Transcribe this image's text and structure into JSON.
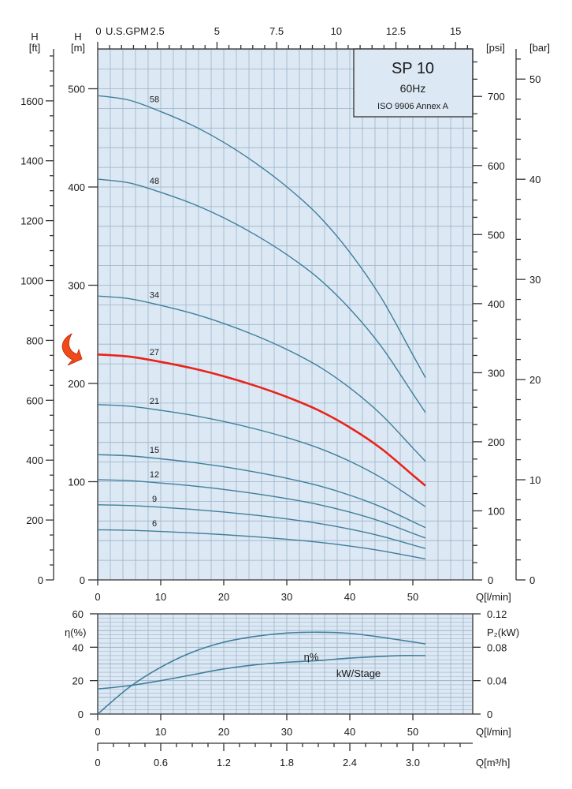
{
  "chart_data": [
    {
      "type": "line",
      "title": "SP 10",
      "frequency": "60Hz",
      "standard": "ISO 9906 Annex A",
      "xlabel": "Q[l/min]",
      "xlim": [
        0,
        59.5
      ],
      "x_ticks": [
        0,
        10,
        20,
        30,
        40,
        50
      ],
      "top_axis": {
        "label": "U.S.GPM",
        "ticks": [
          "0",
          "2.5",
          "5",
          "7.5",
          "10",
          "12.5",
          "15"
        ]
      },
      "ylabel_m": "H",
      "ylabel_m_unit": "[m]",
      "ylim_m": [
        0,
        541
      ],
      "y_ticks_m": [
        0,
        100,
        200,
        300,
        400,
        500
      ],
      "ylabel_ft": "H",
      "ylabel_ft_unit": "[ft]",
      "y_ticks_ft": [
        0,
        200,
        400,
        600,
        800,
        1000,
        1200,
        1400,
        1600
      ],
      "ylabel_psi": "[psi]",
      "y_ticks_psi": [
        0,
        100,
        200,
        300,
        400,
        500,
        600,
        700
      ],
      "ylabel_bar": "[bar]",
      "y_ticks_bar": [
        0,
        10,
        20,
        30,
        40,
        50
      ],
      "q": [
        0,
        5,
        10,
        15,
        20,
        25,
        30,
        35,
        40,
        45,
        50,
        52
      ],
      "head_per_stage_m": [
        8.5,
        8.42,
        8.22,
        7.98,
        7.68,
        7.32,
        6.9,
        6.4,
        5.75,
        4.95,
        3.95,
        3.55
      ],
      "series": [
        {
          "name": "58",
          "stages": 58
        },
        {
          "name": "48",
          "stages": 48
        },
        {
          "name": "34",
          "stages": 34
        },
        {
          "name": "27",
          "stages": 27,
          "highlight": true
        },
        {
          "name": "21",
          "stages": 21
        },
        {
          "name": "15",
          "stages": 15
        },
        {
          "name": "12",
          "stages": 12
        },
        {
          "name": "9",
          "stages": 9
        },
        {
          "name": "6",
          "stages": 6
        }
      ],
      "colors": {
        "curve": "#3f7f9c",
        "highlight": "#e8231a",
        "arrow": "#f04a1a",
        "plot_bg": "#dce8f4",
        "grid": "#9db3c7"
      }
    },
    {
      "type": "line",
      "xlabel": "Q[l/min]",
      "x_ticks": [
        0,
        10,
        20,
        30,
        40,
        50
      ],
      "ylabel_left": "η(%)",
      "ylim_left": [
        0,
        60
      ],
      "y_ticks_left": [
        0,
        20,
        40,
        60
      ],
      "ylabel_right": "P₂(kW)",
      "ylim_right": [
        0,
        0.12
      ],
      "y_ticks_right": [
        "0",
        "0.04",
        "0.08",
        "0.12"
      ],
      "x2label": "Q[m³/h]",
      "x2_ticks": [
        "0",
        "0.6",
        "1.2",
        "1.8",
        "2.4",
        "3.0"
      ],
      "series": [
        {
          "name": "η%",
          "axis": "left",
          "q": [
            0,
            5,
            10,
            15,
            20,
            25,
            30,
            35,
            40,
            45,
            52
          ],
          "values": [
            0,
            16,
            28,
            37,
            43,
            46.5,
            48.5,
            49,
            48.3,
            46,
            42
          ]
        },
        {
          "name": "kW/Stage",
          "axis": "right",
          "q": [
            0,
            5,
            10,
            15,
            20,
            25,
            30,
            35,
            40,
            45,
            48,
            52
          ],
          "values": [
            0.03,
            0.034,
            0.04,
            0.047,
            0.054,
            0.059,
            0.062,
            0.064,
            0.067,
            0.069,
            0.07,
            0.07
          ]
        }
      ]
    }
  ]
}
